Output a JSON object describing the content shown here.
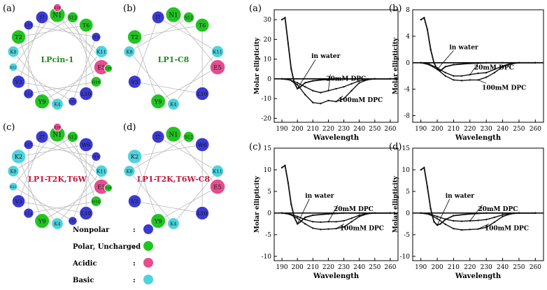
{
  "wheel_panels": [
    {
      "label": "(a)",
      "name": "LPcin-1",
      "name_color": "#1f8a1f",
      "residues": [
        {
          "l": "N1",
          "t": "polar"
        },
        {
          "l": "E5",
          "t": "acidic"
        },
        {
          "l": "Y9",
          "t": "polar"
        },
        {
          "l": "T2",
          "t": "polar"
        },
        {
          "l": "T6",
          "t": "polar"
        },
        {
          "l": "L10",
          "t": "nonpolar"
        },
        {
          "l": "V3",
          "t": "nonpolar"
        },
        {
          "l": "I7",
          "t": "nonpolar"
        },
        {
          "l": "K11",
          "t": "basic"
        },
        {
          "l": "K4",
          "t": "basic"
        },
        {
          "l": "K8",
          "t": "basic"
        },
        {
          "l": "S12",
          "t": "polar"
        },
        {
          "l": "H16",
          "t": "polar"
        },
        {
          "l": "L13",
          "t": "nonpolar"
        },
        {
          "l": "L17",
          "t": "nonpolar"
        },
        {
          "l": "I14",
          "t": "nonpolar"
        },
        {
          "l": "I15",
          "t": "nonpolar"
        },
        {
          "l": "K22",
          "t": "basic"
        },
        {
          "l": "E19",
          "t": "acidic"
        },
        {
          "l": "T20",
          "t": "polar"
        }
      ]
    },
    {
      "label": "(b)",
      "name": "LP1-C8",
      "name_color": "#1f8a1f",
      "residues": [
        {
          "l": "N1",
          "t": "polar"
        },
        {
          "l": "E5",
          "t": "acidic"
        },
        {
          "l": "Y9",
          "t": "polar"
        },
        {
          "l": "T2",
          "t": "polar"
        },
        {
          "l": "T6",
          "t": "polar"
        },
        {
          "l": "L10",
          "t": "nonpolar"
        },
        {
          "l": "V3",
          "t": "nonpolar"
        },
        {
          "l": "I7",
          "t": "nonpolar"
        },
        {
          "l": "K11",
          "t": "basic"
        },
        {
          "l": "K4",
          "t": "basic"
        },
        {
          "l": "K8",
          "t": "basic"
        },
        {
          "l": "S12",
          "t": "polar"
        }
      ]
    },
    {
      "label": "(c)",
      "name": "LP1-T2K,T6W",
      "name_color": "#c0183a",
      "residues": [
        {
          "l": "N1",
          "t": "polar"
        },
        {
          "l": "E5",
          "t": "acidic"
        },
        {
          "l": "Y9",
          "t": "polar"
        },
        {
          "l": "K2",
          "t": "basic"
        },
        {
          "l": "W6",
          "t": "nonpolar"
        },
        {
          "l": "L10",
          "t": "nonpolar"
        },
        {
          "l": "V3",
          "t": "nonpolar"
        },
        {
          "l": "I7",
          "t": "nonpolar"
        },
        {
          "l": "K11",
          "t": "basic"
        },
        {
          "l": "K4",
          "t": "basic"
        },
        {
          "l": "K8",
          "t": "basic"
        },
        {
          "l": "S12",
          "t": "polar"
        },
        {
          "l": "H16",
          "t": "polar"
        },
        {
          "l": "L13",
          "t": "nonpolar"
        },
        {
          "l": "L17",
          "t": "nonpolar"
        },
        {
          "l": "I14",
          "t": "nonpolar"
        },
        {
          "l": "I15",
          "t": "nonpolar"
        },
        {
          "l": "K22",
          "t": "basic"
        },
        {
          "l": "E19",
          "t": "acidic"
        },
        {
          "l": "T20",
          "t": "polar"
        }
      ]
    },
    {
      "label": "(d)",
      "name": "LP1-T2K,T6W-C8",
      "name_color": "#c0183a",
      "residues": [
        {
          "l": "N1",
          "t": "polar"
        },
        {
          "l": "E5",
          "t": "acidic"
        },
        {
          "l": "Y9",
          "t": "polar"
        },
        {
          "l": "K2",
          "t": "basic"
        },
        {
          "l": "W6",
          "t": "nonpolar"
        },
        {
          "l": "L10",
          "t": "nonpolar"
        },
        {
          "l": "V3",
          "t": "nonpolar"
        },
        {
          "l": "I7",
          "t": "nonpolar"
        },
        {
          "l": "K11",
          "t": "basic"
        },
        {
          "l": "K4",
          "t": "basic"
        },
        {
          "l": "K8",
          "t": "basic"
        },
        {
          "l": "S12",
          "t": "polar"
        }
      ]
    }
  ],
  "legend": [
    {
      "label": "Nonpolar",
      "sep": ":",
      "t": "nonpolar"
    },
    {
      "label": "Polar, Uncharged",
      "sep": ":",
      "t": "polar"
    },
    {
      "label": "Acidic",
      "sep": ":",
      "t": "acidic"
    },
    {
      "label": "Basic",
      "sep": ":",
      "t": "basic"
    }
  ],
  "residue_colors": {
    "nonpolar": "#3a3ad0",
    "polar": "#22c422",
    "acidic": "#e64c90",
    "basic": "#4fd3dc"
  },
  "chart_data": [
    {
      "type": "line",
      "panel": "(a)",
      "xlabel": "Wavelength",
      "ylabel": "Molar ellipticity",
      "xlim": [
        185,
        265
      ],
      "ylim": [
        -22,
        35
      ],
      "xticks": [
        190,
        200,
        210,
        220,
        230,
        240,
        250,
        260
      ],
      "yticks": [
        -20,
        -10,
        0,
        10,
        20,
        30
      ],
      "series": [
        {
          "name": "in water",
          "x": [
            190,
            192,
            194,
            196,
            198,
            200,
            202,
            205,
            210,
            215,
            220,
            230,
            240,
            250,
            260
          ],
          "y": [
            30,
            31,
            18,
            5,
            -2,
            -5,
            -4,
            -2,
            -1,
            -0.5,
            -0.3,
            -0.1,
            0,
            0,
            0
          ]
        },
        {
          "name": "20mM DPC",
          "x": [
            190,
            195,
            200,
            205,
            210,
            215,
            220,
            225,
            230,
            235,
            240,
            245,
            250,
            260
          ],
          "y": [
            0,
            -0.5,
            -2,
            -4,
            -6,
            -7,
            -6,
            -5,
            -4,
            -2.5,
            -1,
            -0.3,
            0,
            0
          ]
        },
        {
          "name": "100mM DPC",
          "x": [
            190,
            195,
            200,
            205,
            210,
            215,
            220,
            225,
            230,
            235,
            240,
            245,
            250,
            260
          ],
          "y": [
            0,
            -0.5,
            -3,
            -8,
            -12,
            -12.5,
            -11,
            -11.5,
            -10,
            -6,
            -2,
            -0.5,
            0,
            0
          ]
        }
      ],
      "annotations": [
        "in water",
        "20mM DPC",
        "100mM DPC"
      ]
    },
    {
      "type": "line",
      "panel": "(b)",
      "xlabel": "Wavelength",
      "ylabel": "Molar ellipticity",
      "xlim": [
        185,
        265
      ],
      "ylim": [
        -9,
        8
      ],
      "xticks": [
        190,
        200,
        210,
        220,
        230,
        240,
        250,
        260
      ],
      "yticks": [
        -8,
        -4,
        0,
        4,
        8
      ],
      "series": [
        {
          "name": "in water",
          "x": [
            190,
            192,
            194,
            196,
            198,
            200,
            202,
            205,
            210,
            220,
            230,
            240,
            250,
            260
          ],
          "y": [
            6.5,
            6.8,
            5,
            2,
            0,
            -1,
            -1.2,
            -0.6,
            -0.3,
            -0.1,
            0,
            0,
            0,
            0
          ]
        },
        {
          "name": "20mM DPC",
          "x": [
            190,
            195,
            200,
            205,
            210,
            215,
            220,
            225,
            230,
            235,
            240,
            245,
            250,
            260
          ],
          "y": [
            0,
            -0.2,
            -0.8,
            -1.5,
            -2,
            -2,
            -1.8,
            -1.6,
            -1.5,
            -1,
            -0.5,
            -0.1,
            0,
            0
          ]
        },
        {
          "name": "100mM DPC",
          "x": [
            190,
            195,
            200,
            205,
            210,
            215,
            220,
            225,
            230,
            235,
            240,
            245,
            250,
            260
          ],
          "y": [
            0,
            -0.3,
            -1,
            -2,
            -2.6,
            -2.7,
            -2.6,
            -2.6,
            -2.2,
            -1.5,
            -0.6,
            -0.2,
            0,
            0
          ]
        }
      ],
      "annotations": [
        "in water",
        "20mM DPC",
        "100mM DPC"
      ]
    },
    {
      "type": "line",
      "panel": "(c)",
      "xlabel": "Wavelength",
      "ylabel": "Molar ellipticity",
      "xlim": [
        185,
        265
      ],
      "ylim": [
        -11,
        15
      ],
      "xticks": [
        190,
        200,
        210,
        220,
        230,
        240,
        250,
        260
      ],
      "yticks": [
        -10,
        -5,
        0,
        5,
        10,
        15
      ],
      "series": [
        {
          "name": "in water",
          "x": [
            190,
            192,
            194,
            196,
            198,
            200,
            202,
            205,
            210,
            220,
            230,
            240,
            250,
            260
          ],
          "y": [
            10.5,
            11,
            7,
            2,
            -1,
            -2.5,
            -2,
            -1,
            -0.5,
            -0.2,
            0,
            0,
            0,
            0
          ]
        },
        {
          "name": "20mM DPC",
          "x": [
            190,
            195,
            200,
            205,
            210,
            215,
            220,
            225,
            230,
            235,
            240,
            245,
            250,
            260
          ],
          "y": [
            0,
            -0.2,
            -0.8,
            -1.5,
            -2,
            -2.1,
            -2,
            -2,
            -1.8,
            -1.2,
            -0.5,
            -0.1,
            0,
            0
          ]
        },
        {
          "name": "100mM DPC",
          "x": [
            190,
            195,
            200,
            205,
            210,
            215,
            220,
            225,
            230,
            235,
            240,
            245,
            250,
            260
          ],
          "y": [
            0,
            -0.3,
            -1.2,
            -2.5,
            -3.5,
            -3.8,
            -3.7,
            -3.6,
            -3.2,
            -2,
            -0.8,
            -0.2,
            0,
            0
          ]
        }
      ],
      "annotations": [
        "in water",
        "20mM DPC",
        "100mM DPC"
      ]
    },
    {
      "type": "line",
      "panel": "(d)",
      "xlabel": "Wavelength",
      "ylabel": "Molar ellipticity",
      "xlim": [
        185,
        265
      ],
      "ylim": [
        -11,
        15
      ],
      "xticks": [
        190,
        200,
        210,
        220,
        230,
        240,
        250,
        260
      ],
      "yticks": [
        -10,
        -5,
        0,
        5,
        10,
        15
      ],
      "series": [
        {
          "name": "in water",
          "x": [
            190,
            192,
            194,
            196,
            198,
            200,
            202,
            205,
            210,
            220,
            230,
            240,
            250,
            260
          ],
          "y": [
            10,
            10.5,
            6,
            1,
            -2,
            -2.8,
            -2.5,
            -1.5,
            -0.6,
            -0.2,
            0,
            0,
            0,
            0
          ]
        },
        {
          "name": "20mM DPC",
          "x": [
            190,
            195,
            200,
            205,
            210,
            215,
            220,
            225,
            230,
            235,
            240,
            245,
            250,
            260
          ],
          "y": [
            0,
            -0.2,
            -0.8,
            -1.4,
            -1.8,
            -1.9,
            -1.8,
            -1.7,
            -1.5,
            -1,
            -0.4,
            -0.1,
            0,
            0
          ]
        },
        {
          "name": "100mM DPC",
          "x": [
            190,
            195,
            200,
            205,
            210,
            215,
            220,
            225,
            230,
            235,
            240,
            245,
            250,
            260
          ],
          "y": [
            0,
            -0.3,
            -1.3,
            -2.6,
            -3.6,
            -3.9,
            -3.8,
            -3.7,
            -3.3,
            -2.1,
            -0.8,
            -0.2,
            0,
            0
          ]
        }
      ],
      "annotations": [
        "in water",
        "20mM DPC",
        "100mM DPC"
      ]
    }
  ]
}
